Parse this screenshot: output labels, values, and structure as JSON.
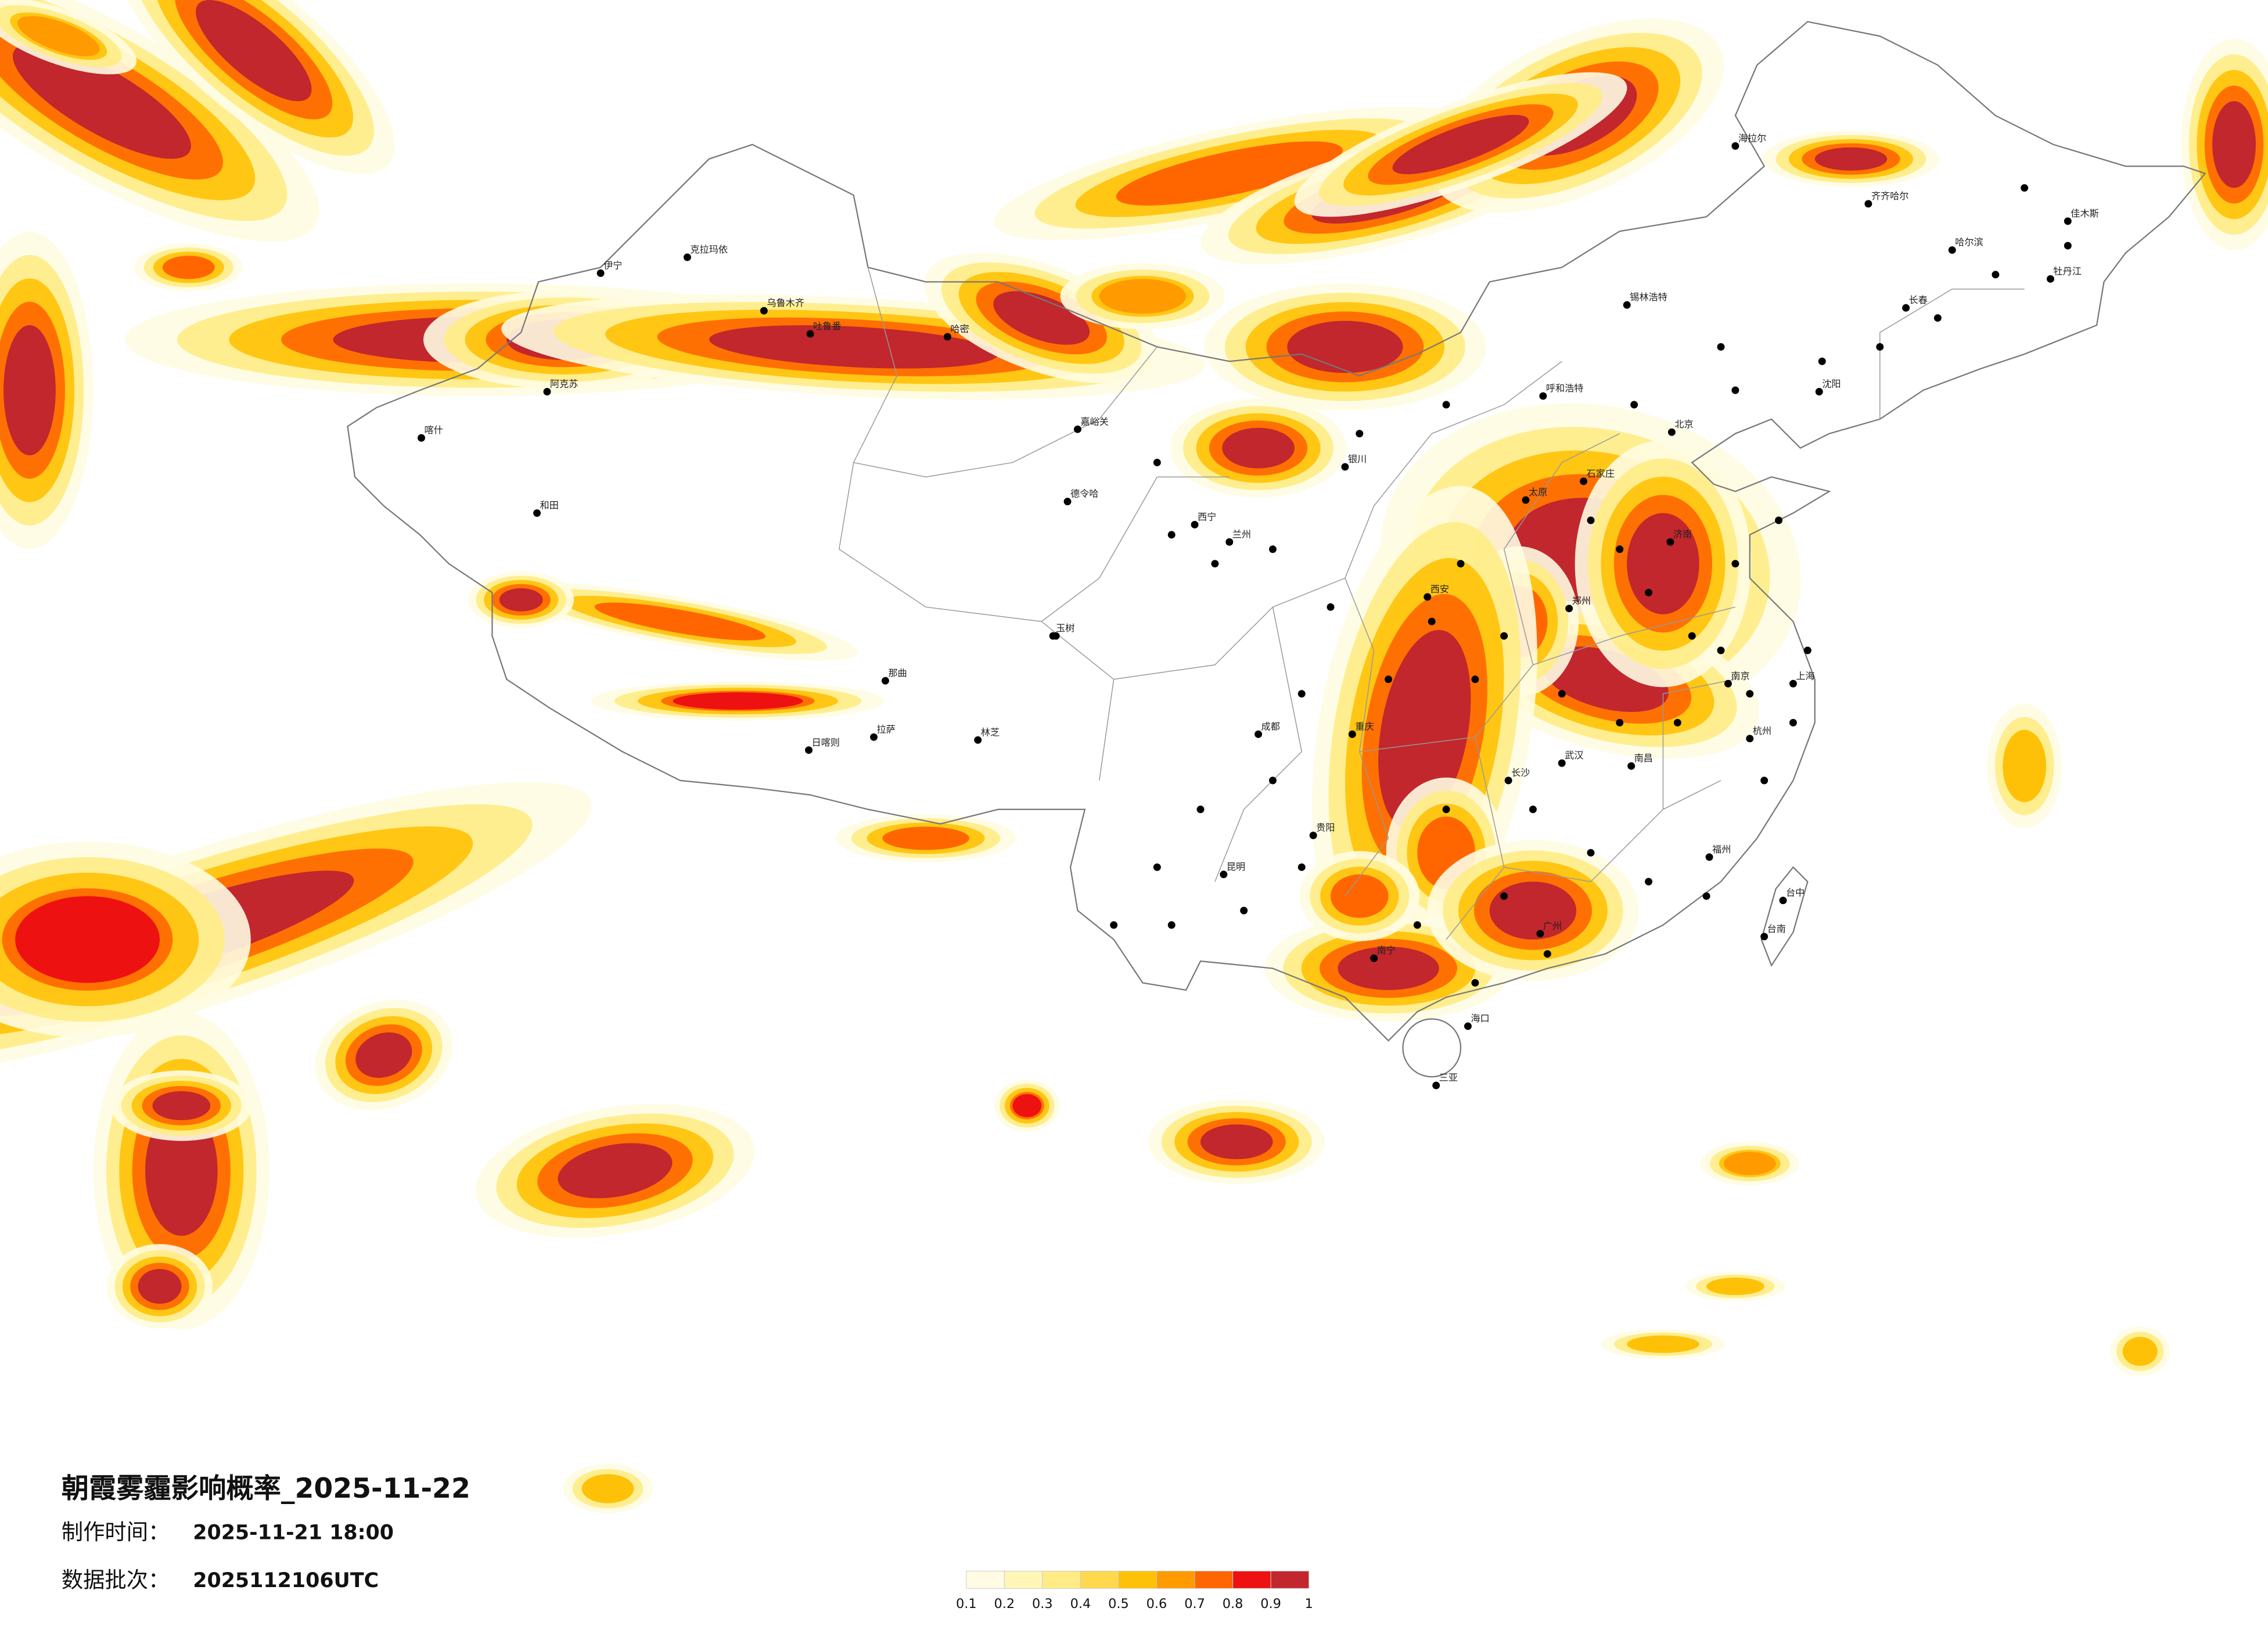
{
  "header": {
    "title": "朝霞雾霾影响概率_2025-11-22"
  },
  "info": [
    {
      "label": "制作时间：",
      "value": "2025-11-21 18:00"
    },
    {
      "label": "数据批次：",
      "value": "2025112106UTC"
    }
  ],
  "legend": {
    "ticks": [
      0.1,
      0.2,
      0.3,
      0.4,
      0.5,
      0.6,
      0.7,
      0.8,
      0.9,
      1
    ],
    "colors": [
      "#fffce3",
      "#fff6b8",
      "#ffec85",
      "#ffd84d",
      "#ffc107",
      "#ff9a00",
      "#ff6600",
      "#ee1111",
      "#c1272d"
    ]
  },
  "cities": [
    "克拉玛依",
    "伊宁",
    "乌鲁木齐",
    "吐鲁番",
    "哈密",
    "阿克苏",
    "喀什",
    "和田",
    "嘉峪关",
    "德令哈",
    "玉树",
    "那曲",
    "日喀则",
    "拉萨",
    "林芝",
    "西宁",
    "兰州",
    "银川",
    "呼和浩特",
    "锡林浩特",
    "海拉尔",
    "齐齐哈尔",
    "哈尔滨",
    "佳木斯",
    "牡丹江",
    "长春",
    "沈阳",
    "北京",
    "石家庄",
    "太原",
    "济南",
    "郑州",
    "西安",
    "成都",
    "重庆",
    "武汉",
    "长沙",
    "南昌",
    "南京",
    "上海",
    "杭州",
    "福州",
    "贵阳",
    "昆明",
    "南宁",
    "广州",
    "海口",
    "三亚",
    "台中",
    "台南"
  ]
}
